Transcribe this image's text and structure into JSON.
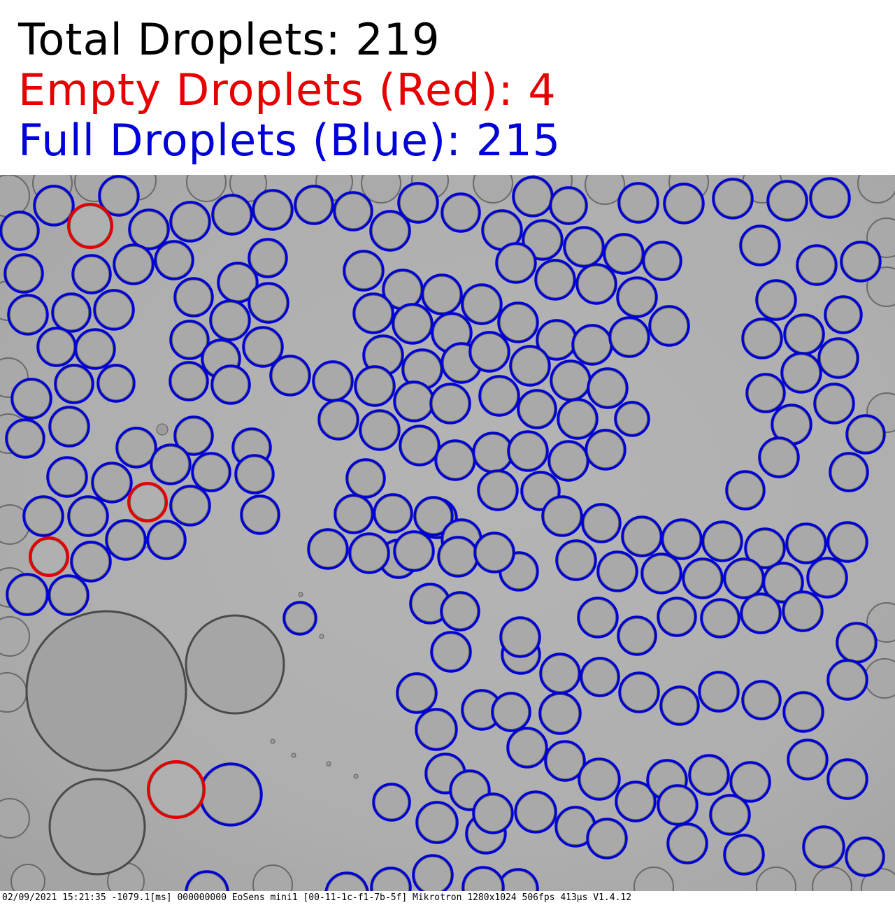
{
  "overlay": {
    "total_label": "Total Droplets: 219",
    "empty_label": "Empty Droplets (Red): 4",
    "full_label": "Full Droplets (Blue): 215",
    "total_color": "#000000",
    "empty_color": "#e60000",
    "full_color": "#0000d8"
  },
  "image": {
    "caption": "02/09/2021 15:21:35 -1079.1[ms] 000000000 EoSens mini1 [00-11-1c-f1-7b-5f] Mikrotron 1280x1024 506fps 413µs V1.4.12"
  },
  "colors": {
    "background_gray": "#b1b1b1",
    "droplet_fill": "#a9a9a9",
    "droplet_edge": "#5a5a5a",
    "empty_outline": "#e60000",
    "full_outline": "#0000d8"
  },
  "counts": {
    "total": 219,
    "empty": 4,
    "full": 215
  }
}
